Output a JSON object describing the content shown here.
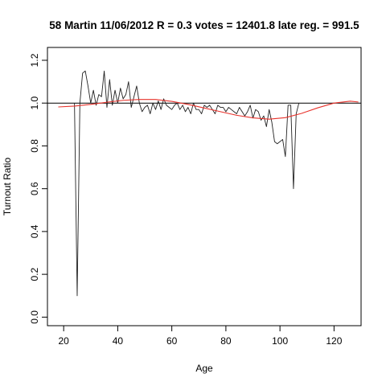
{
  "chart_data": {
    "type": "line",
    "title": "58 Martin 11/06/2012 R = 0.3 votes = 12401.8 late reg. = 991.5",
    "xlabel": "Age",
    "ylabel": "Turnout Ratio",
    "xlim": [
      14,
      130
    ],
    "ylim": [
      -0.04,
      1.26
    ],
    "x_ticks": [
      20,
      40,
      60,
      80,
      100,
      120
    ],
    "y_ticks": [
      0.0,
      0.2,
      0.4,
      0.6,
      0.8,
      1.0,
      1.2
    ],
    "x_tick_labels": [
      "20",
      "40",
      "60",
      "80",
      "100",
      "120"
    ],
    "y_tick_labels": [
      "0.0",
      "0.2",
      "0.4",
      "0.6",
      "0.8",
      "1.0",
      "1.2"
    ],
    "grid": false,
    "reference_line": {
      "y": 1.0,
      "color": "#000000"
    },
    "series": [
      {
        "color": "#222222",
        "x": [
          24,
          25,
          26,
          27,
          28,
          29,
          30,
          31,
          32,
          33,
          34,
          35,
          36,
          37,
          38,
          39,
          40,
          41,
          42,
          43,
          44,
          45,
          46,
          47,
          48,
          49,
          50,
          51,
          52,
          53,
          54,
          55,
          56,
          57,
          58,
          59,
          60,
          61,
          62,
          63,
          64,
          65,
          66,
          67,
          68,
          69,
          70,
          71,
          72,
          73,
          74,
          75,
          76,
          77,
          78,
          79,
          80,
          81,
          82,
          83,
          84,
          85,
          86,
          87,
          88,
          89,
          90,
          91,
          92,
          93,
          94,
          95,
          96,
          97,
          98,
          99,
          100,
          101,
          102,
          103,
          104,
          105,
          106,
          107
        ],
        "values": [
          1.0,
          0.1,
          1.0,
          1.14,
          1.15,
          1.08,
          1.0,
          1.06,
          0.99,
          1.04,
          1.03,
          1.15,
          0.98,
          1.11,
          0.99,
          1.06,
          1.0,
          1.07,
          1.02,
          1.04,
          1.1,
          0.98,
          1.03,
          1.08,
          1.0,
          0.96,
          0.98,
          0.99,
          0.95,
          1.0,
          0.97,
          1.01,
          0.97,
          1.02,
          0.99,
          0.98,
          0.97,
          0.99,
          1.0,
          0.97,
          0.99,
          0.96,
          0.98,
          0.95,
          1.0,
          0.97,
          0.97,
          0.95,
          0.99,
          0.98,
          0.99,
          0.97,
          0.95,
          0.99,
          0.98,
          0.98,
          0.96,
          0.98,
          0.97,
          0.96,
          0.95,
          0.98,
          0.96,
          0.94,
          0.96,
          0.99,
          0.93,
          0.97,
          0.96,
          0.92,
          0.94,
          0.89,
          0.97,
          0.91,
          0.82,
          0.81,
          0.82,
          0.83,
          0.75,
          0.99,
          0.99,
          0.6,
          0.95,
          1.0
        ]
      },
      {
        "color": "#e8322b",
        "x": [
          18,
          24,
          30,
          36,
          42,
          48,
          54,
          60,
          66,
          72,
          78,
          84,
          90,
          96,
          102,
          108,
          114,
          120,
          126,
          129
        ],
        "values": [
          0.982,
          0.986,
          0.994,
          1.004,
          1.013,
          1.017,
          1.017,
          1.008,
          0.994,
          0.977,
          0.96,
          0.943,
          0.931,
          0.925,
          0.932,
          0.952,
          0.978,
          1.0,
          1.009,
          1.005
        ]
      }
    ]
  }
}
